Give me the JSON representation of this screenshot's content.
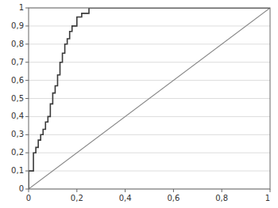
{
  "chart_data": {
    "type": "line",
    "series": [
      {
        "color": "#888888",
        "x": [
          0,
          1
        ],
        "values": [
          0,
          1
        ]
      },
      {
        "color": "#3a3a3a",
        "x": [
          0,
          0.0,
          0.0,
          0.02,
          0.02,
          0.03,
          0.03,
          0.04,
          0.04,
          0.05,
          0.05,
          0.06,
          0.06,
          0.07,
          0.07,
          0.08,
          0.08,
          0.09,
          0.09,
          0.1,
          0.1,
          0.11,
          0.11,
          0.12,
          0.12,
          0.13,
          0.13,
          0.14,
          0.14,
          0.15,
          0.15,
          0.16,
          0.16,
          0.17,
          0.17,
          0.18,
          0.18,
          0.2,
          0.2,
          0.22,
          0.22,
          0.25,
          0.25,
          1.0
        ],
        "values": [
          0,
          0.0,
          0.1,
          0.1,
          0.2,
          0.2,
          0.23,
          0.23,
          0.27,
          0.27,
          0.3,
          0.3,
          0.33,
          0.33,
          0.37,
          0.37,
          0.4,
          0.4,
          0.47,
          0.47,
          0.53,
          0.53,
          0.57,
          0.57,
          0.63,
          0.63,
          0.7,
          0.7,
          0.75,
          0.75,
          0.8,
          0.8,
          0.83,
          0.83,
          0.87,
          0.87,
          0.9,
          0.9,
          0.95,
          0.95,
          0.97,
          0.97,
          1.0,
          1.0
        ]
      }
    ],
    "xlim": [
      0,
      1
    ],
    "ylim": [
      0,
      1
    ],
    "xticks": [
      0,
      {
        "value": 0.2,
        "label": "0,2"
      },
      {
        "value": 0.4,
        "label": "0,4"
      },
      {
        "value": 0.6,
        "label": "0,6"
      },
      {
        "value": 0.8,
        "label": "0,8"
      },
      1
    ],
    "yticks": [
      0,
      {
        "value": 0.1,
        "label": "0,1"
      },
      {
        "value": 0.2,
        "label": "0,2"
      },
      {
        "value": 0.3,
        "label": "0,3"
      },
      {
        "value": 0.4,
        "label": "0,4"
      },
      {
        "value": 0.5,
        "label": "0,5"
      },
      {
        "value": 0.6,
        "label": "0,6"
      },
      {
        "value": 0.7,
        "label": "0,7"
      },
      {
        "value": 0.8,
        "label": "0,8"
      },
      {
        "value": 0.9,
        "label": "0,9"
      },
      1
    ],
    "grid": "y"
  }
}
